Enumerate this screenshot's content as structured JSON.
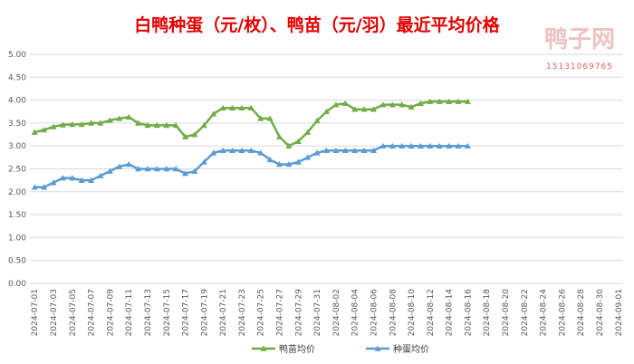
{
  "chart_data": {
    "type": "line",
    "title": "白鸭种蛋（元/枚）、鸭苗（元/羽）最近平均价格",
    "watermark": {
      "brand": "鸭子网",
      "phone": "15131069765"
    },
    "categories": [
      "2024-07-01",
      null,
      "2024-07-03",
      null,
      "2024-07-05",
      null,
      "2024-07-07",
      null,
      "2024-07-09",
      null,
      "2024-07-11",
      null,
      "2024-07-13",
      null,
      "2024-07-15",
      null,
      "2024-07-17",
      null,
      "2024-07-19",
      null,
      "2024-07-21",
      null,
      "2024-07-23",
      null,
      "2024-07-25",
      null,
      "2024-07-27",
      null,
      "2024-07-29",
      null,
      "2024-07-31",
      null,
      "2024-08-02",
      null,
      "2024-08-04",
      null,
      "2024-08-06",
      null,
      "2024-08-08",
      null,
      "2024-08-10",
      null,
      "2024-08-12",
      null,
      "2024-08-14",
      null,
      "2024-08-16",
      null,
      "2024-08-18",
      null,
      "2024-08-20",
      null,
      "2024-08-22",
      null,
      "2024-08-24",
      null,
      "2024-08-26",
      null,
      "2024-08-28",
      null,
      "2024-08-30",
      null,
      "2024-09-01"
    ],
    "series": [
      {
        "name": "鸭苗均价",
        "color": "#70ad47",
        "values": [
          3.3,
          3.35,
          3.42,
          3.46,
          3.47,
          3.47,
          3.5,
          3.5,
          3.56,
          3.6,
          3.63,
          3.5,
          3.45,
          3.45,
          3.45,
          3.45,
          3.2,
          3.25,
          3.45,
          3.7,
          3.83,
          3.83,
          3.83,
          3.83,
          3.6,
          3.6,
          3.2,
          3.0,
          3.1,
          3.3,
          3.55,
          3.75,
          3.9,
          3.93,
          3.8,
          3.8,
          3.8,
          3.9,
          3.9,
          3.9,
          3.85,
          3.93,
          3.97,
          3.97,
          3.97,
          3.97,
          3.97,
          null,
          null,
          null,
          null,
          null,
          null,
          null,
          null,
          null,
          null,
          null,
          null,
          null,
          null,
          null,
          null
        ]
      },
      {
        "name": "种蛋均价",
        "color": "#5b9bd5",
        "values": [
          2.1,
          2.1,
          2.2,
          2.3,
          2.3,
          2.25,
          2.25,
          2.35,
          2.45,
          2.55,
          2.6,
          2.5,
          2.5,
          2.5,
          2.5,
          2.5,
          2.4,
          2.45,
          2.65,
          2.85,
          2.9,
          2.9,
          2.9,
          2.9,
          2.85,
          2.7,
          2.6,
          2.6,
          2.65,
          2.75,
          2.85,
          2.9,
          2.9,
          2.9,
          2.9,
          2.9,
          2.9,
          3.0,
          3.0,
          3.0,
          3.0,
          3.0,
          3.0,
          3.0,
          3.0,
          3.0,
          3.0,
          null,
          null,
          null,
          null,
          null,
          null,
          null,
          null,
          null,
          null,
          null,
          null,
          null,
          null,
          null,
          null
        ]
      }
    ],
    "ylim": [
      0,
      5
    ],
    "yticks": [
      {
        "value": 0,
        "label": "0.00"
      },
      {
        "value": 0.5,
        "label": "0.50"
      },
      {
        "value": 1,
        "label": "1.00"
      },
      {
        "value": 1.5,
        "label": "1.50"
      },
      {
        "value": 2,
        "label": "2.00"
      },
      {
        "value": 2.5,
        "label": "2.50"
      },
      {
        "value": 3,
        "label": "3.00"
      },
      {
        "value": 3.5,
        "label": "3.50"
      },
      {
        "value": 4,
        "label": "4.00"
      },
      {
        "value": 4.5,
        "label": "4.50"
      },
      {
        "value": 5,
        "label": "5.00"
      }
    ],
    "grid": true,
    "legend": "bottom"
  }
}
